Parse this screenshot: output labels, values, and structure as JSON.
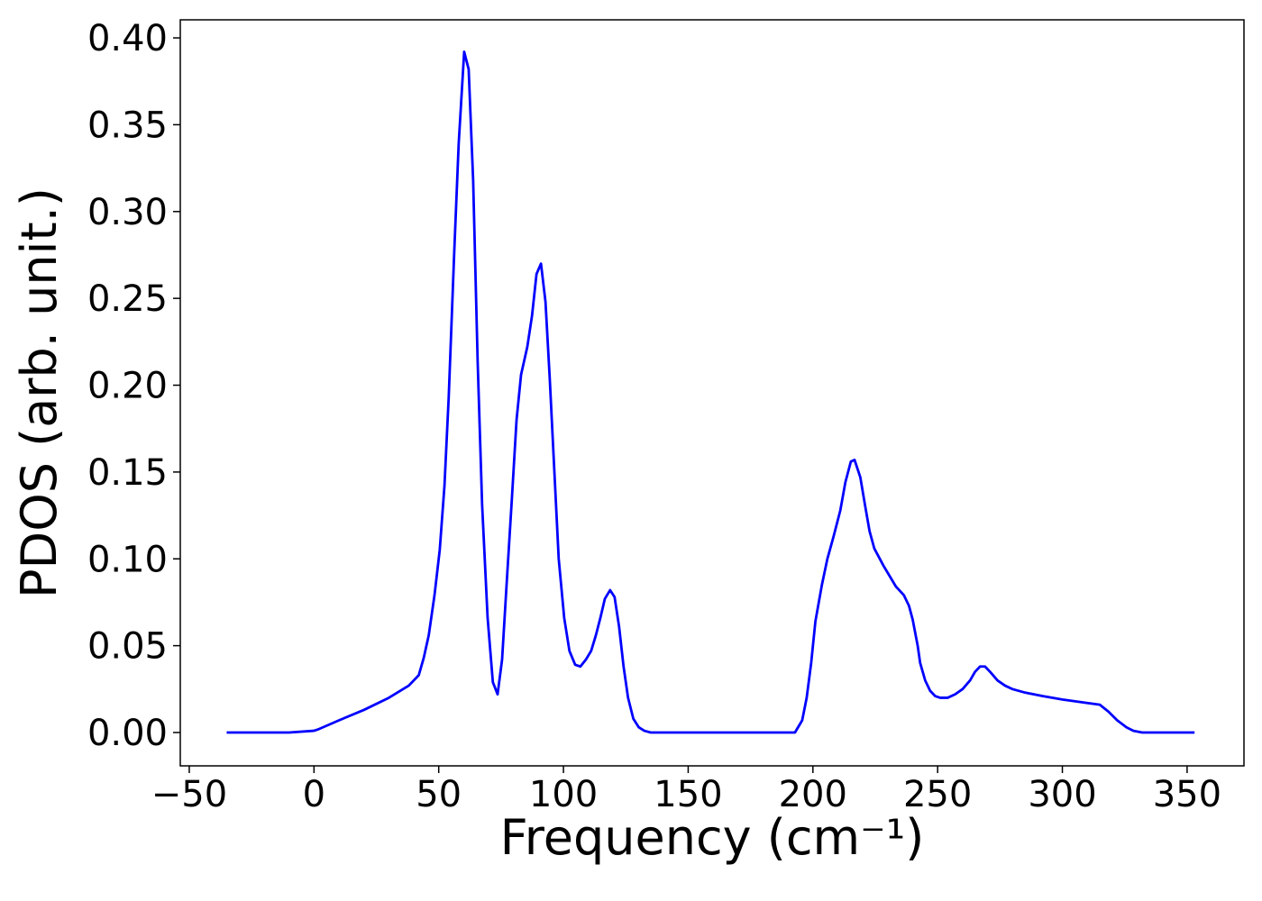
{
  "chart_data": {
    "type": "line",
    "x_label": "Frequency (cm⁻¹)",
    "y_label": "PDOS (arb. unit.)",
    "xlim": [
      -53.6,
      372.8
    ],
    "ylim": [
      -0.0192,
      0.4104
    ],
    "xticks": [
      {
        "value": -50,
        "label": "−50"
      },
      0,
      50,
      100,
      150,
      200,
      250,
      300,
      350
    ],
    "yticks": [
      {
        "value": 0,
        "label": "0.00"
      },
      {
        "value": 0.05,
        "label": "0.05"
      },
      {
        "value": 0.1,
        "label": "0.10"
      },
      {
        "value": 0.15,
        "label": "0.15"
      },
      {
        "value": 0.2,
        "label": "0.20"
      },
      {
        "value": 0.25,
        "label": "0.25"
      },
      {
        "value": 0.3,
        "label": "0.30"
      },
      {
        "value": 0.35,
        "label": "0.35"
      },
      {
        "value": 0.4,
        "label": "0.40"
      }
    ],
    "grid": false,
    "series": [
      {
        "color": "#0000ff",
        "x": [
          -35,
          -10,
          0,
          2,
          10,
          20,
          30,
          38,
          42,
          44,
          46,
          48.3,
          50.4,
          52.3,
          54,
          56.2,
          58,
          60.2,
          62,
          63.8,
          65.6,
          67.4,
          69.6,
          71.7,
          73.6,
          75.4,
          77.2,
          79.3,
          81.2,
          83,
          85.5,
          87.4,
          89.2,
          91,
          92.8,
          94.5,
          96.3,
          98.1,
          100.3,
          102.4,
          104.7,
          106.8,
          109,
          111.1,
          113,
          114.8,
          116.6,
          118.7,
          120.5,
          122.3,
          124.1,
          125.9,
          128,
          130.2,
          132.4,
          135,
          150,
          180,
          192.8,
          195.7,
          197.5,
          199.3,
          201,
          203.6,
          205.8,
          208.3,
          211,
          213,
          215.2,
          216.7,
          219,
          221,
          222.7,
          224.6,
          228.3,
          233.3,
          236.5,
          238.5,
          240,
          242,
          243,
          245,
          247,
          249,
          251,
          254,
          257,
          260,
          263,
          265,
          267,
          269,
          271,
          274,
          277,
          280,
          285,
          292,
          300,
          310,
          315,
          318.5,
          322,
          325.7,
          328.5,
          332,
          353
        ],
        "values": [
          0,
          0,
          0.001,
          0.002,
          0.007,
          0.013,
          0.02,
          0.027,
          0.033,
          0.043,
          0.056,
          0.079,
          0.105,
          0.142,
          0.193,
          0.276,
          0.339,
          0.392,
          0.382,
          0.318,
          0.214,
          0.131,
          0.066,
          0.029,
          0.022,
          0.042,
          0.085,
          0.134,
          0.18,
          0.206,
          0.222,
          0.24,
          0.264,
          0.27,
          0.248,
          0.204,
          0.152,
          0.1,
          0.066,
          0.047,
          0.039,
          0.038,
          0.042,
          0.047,
          0.056,
          0.066,
          0.077,
          0.082,
          0.078,
          0.061,
          0.038,
          0.02,
          0.008,
          0.003,
          0.001,
          0,
          0,
          0,
          0,
          0.007,
          0.02,
          0.04,
          0.064,
          0.085,
          0.1,
          0.113,
          0.128,
          0.144,
          0.156,
          0.157,
          0.147,
          0.13,
          0.116,
          0.106,
          0.096,
          0.084,
          0.079,
          0.073,
          0.065,
          0.05,
          0.04,
          0.03,
          0.024,
          0.021,
          0.02,
          0.02,
          0.022,
          0.025,
          0.03,
          0.035,
          0.038,
          0.038,
          0.035,
          0.03,
          0.027,
          0.025,
          0.023,
          0.021,
          0.019,
          0.017,
          0.016,
          0.012,
          0.007,
          0.003,
          0.001,
          0,
          0
        ]
      }
    ]
  }
}
